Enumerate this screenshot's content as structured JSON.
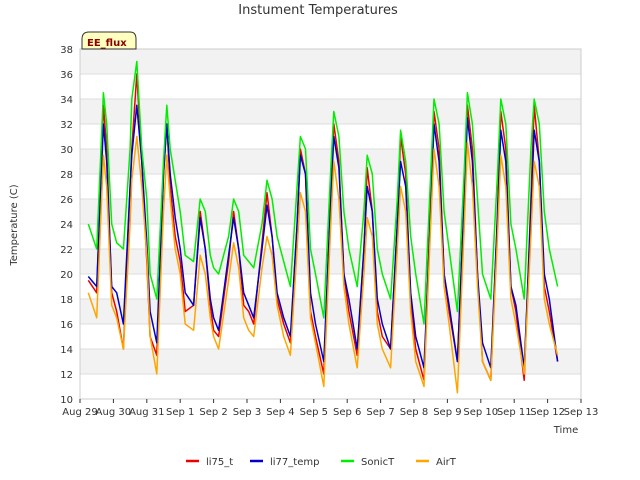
{
  "chart_data": {
    "type": "line",
    "title": "Instument Temperatures",
    "xlabel": "Time",
    "ylabel": "Temperature (C)",
    "badge": "EE_flux",
    "ylim": [
      10,
      38
    ],
    "yticks": [
      10,
      12,
      14,
      16,
      18,
      20,
      22,
      24,
      26,
      28,
      30,
      32,
      34,
      36,
      38
    ],
    "xlim": [
      0,
      15
    ],
    "xticks": [
      {
        "pos": 0,
        "label": "Aug 29"
      },
      {
        "pos": 1,
        "label": "Aug 30"
      },
      {
        "pos": 2,
        "label": "Aug 31"
      },
      {
        "pos": 3,
        "label": "Sep 1"
      },
      {
        "pos": 4,
        "label": "Sep 2"
      },
      {
        "pos": 5,
        "label": "Sep 3"
      },
      {
        "pos": 6,
        "label": "Sep 4"
      },
      {
        "pos": 7,
        "label": "Sep 5"
      },
      {
        "pos": 8,
        "label": "Sep 6"
      },
      {
        "pos": 9,
        "label": "Sep 7"
      },
      {
        "pos": 10,
        "label": "Sep 8"
      },
      {
        "pos": 11,
        "label": "Sep 9"
      },
      {
        "pos": 12,
        "label": "Sep 10"
      },
      {
        "pos": 13,
        "label": "Sep 11"
      },
      {
        "pos": 14,
        "label": "Sep 12"
      },
      {
        "pos": 15,
        "label": "Sep 13"
      }
    ],
    "grid": true,
    "legend_position": "bottom",
    "series": [
      {
        "name": "li75_t",
        "color": "#ee0000",
        "x": [
          0.25,
          0.5,
          0.7,
          0.8,
          0.95,
          1.1,
          1.3,
          1.5,
          1.55,
          1.7,
          1.85,
          2.0,
          2.1,
          2.3,
          2.5,
          2.6,
          2.7,
          2.85,
          3.0,
          3.15,
          3.4,
          3.6,
          3.75,
          3.9,
          4.0,
          4.15,
          4.45,
          4.6,
          4.75,
          4.9,
          5.05,
          5.2,
          5.45,
          5.6,
          5.75,
          5.9,
          6.1,
          6.3,
          6.5,
          6.6,
          6.75,
          6.9,
          7.05,
          7.3,
          7.5,
          7.6,
          7.75,
          7.9,
          8.05,
          8.3,
          8.5,
          8.6,
          8.75,
          8.9,
          9.05,
          9.3,
          9.5,
          9.6,
          9.75,
          9.9,
          10.05,
          10.3,
          10.5,
          10.6,
          10.75,
          10.9,
          11.05,
          11.3,
          11.5,
          11.6,
          11.75,
          11.9,
          12.05,
          12.3,
          12.5,
          12.6,
          12.75,
          12.9,
          13.05,
          13.3,
          13.5,
          13.6,
          13.75,
          13.9,
          14.05,
          14.3
        ],
        "y": [
          19.5,
          18.5,
          33.5,
          30,
          18.5,
          17,
          14,
          27,
          30,
          36,
          29,
          21,
          15,
          13.5,
          28,
          32,
          27,
          23,
          21,
          17,
          17.5,
          25,
          22,
          17.5,
          15.5,
          15,
          21,
          25,
          22,
          17.5,
          17,
          16,
          22.5,
          26.5,
          23,
          18,
          16,
          14.5,
          24,
          30,
          28,
          17,
          15,
          12,
          26,
          32,
          29,
          20,
          17,
          13.5,
          22,
          28.5,
          25,
          17,
          15,
          14,
          24,
          31,
          28,
          18,
          14,
          11.5,
          26,
          33,
          30,
          20,
          17,
          13,
          26,
          33.5,
          30,
          20,
          13,
          11.5,
          25,
          33,
          30,
          19,
          17,
          11.5,
          26,
          33.5,
          29,
          19,
          17,
          13
        ]
      },
      {
        "name": "li77_temp",
        "color": "#0000cc",
        "x": [
          0.25,
          0.5,
          0.7,
          0.8,
          0.95,
          1.1,
          1.3,
          1.5,
          1.55,
          1.7,
          1.85,
          2.0,
          2.1,
          2.3,
          2.5,
          2.6,
          2.7,
          2.85,
          3.0,
          3.15,
          3.4,
          3.6,
          3.75,
          3.9,
          4.0,
          4.15,
          4.45,
          4.6,
          4.75,
          4.9,
          5.05,
          5.2,
          5.45,
          5.6,
          5.75,
          5.9,
          6.1,
          6.3,
          6.5,
          6.6,
          6.75,
          6.9,
          7.05,
          7.3,
          7.5,
          7.6,
          7.75,
          7.9,
          8.05,
          8.3,
          8.5,
          8.6,
          8.75,
          8.9,
          9.05,
          9.3,
          9.5,
          9.6,
          9.75,
          9.9,
          10.05,
          10.3,
          10.5,
          10.6,
          10.75,
          10.9,
          11.05,
          11.3,
          11.5,
          11.6,
          11.75,
          11.9,
          12.05,
          12.3,
          12.5,
          12.6,
          12.75,
          12.9,
          13.05,
          13.3,
          13.5,
          13.6,
          13.75,
          13.9,
          14.05,
          14.3
        ],
        "y": [
          19.8,
          19,
          32,
          29,
          19,
          18.5,
          16,
          27,
          29.5,
          33.5,
          29,
          22.5,
          17,
          14.5,
          28,
          32,
          28,
          24.5,
          22,
          18.5,
          17.5,
          24.5,
          22,
          18,
          16.5,
          15.5,
          21.5,
          24.5,
          22,
          18.5,
          17.5,
          16.5,
          22,
          25.5,
          23,
          18.5,
          16.5,
          15,
          24,
          29.5,
          28,
          18.5,
          16,
          13,
          25.5,
          31,
          28.5,
          20,
          18,
          14,
          22,
          27,
          25,
          18,
          16,
          14,
          24,
          29,
          27,
          18.5,
          15,
          12.5,
          25,
          32,
          29,
          20,
          17.5,
          13,
          25.5,
          32.5,
          29,
          20,
          14.5,
          12.5,
          24.5,
          31.5,
          29,
          19,
          17.5,
          12.5,
          25,
          31.5,
          29,
          20,
          18,
          13
        ]
      },
      {
        "name": "SonicT",
        "color": "#00ee00",
        "x": [
          0.25,
          0.5,
          0.7,
          0.8,
          0.95,
          1.1,
          1.3,
          1.5,
          1.55,
          1.7,
          1.85,
          2.0,
          2.1,
          2.3,
          2.5,
          2.6,
          2.7,
          2.85,
          3.0,
          3.15,
          3.4,
          3.6,
          3.75,
          3.9,
          4.0,
          4.15,
          4.45,
          4.6,
          4.75,
          4.9,
          5.05,
          5.2,
          5.45,
          5.6,
          5.75,
          5.9,
          6.1,
          6.3,
          6.5,
          6.6,
          6.75,
          6.9,
          7.05,
          7.3,
          7.5,
          7.6,
          7.75,
          7.9,
          8.05,
          8.3,
          8.5,
          8.6,
          8.75,
          8.9,
          9.05,
          9.3,
          9.5,
          9.6,
          9.75,
          9.9,
          10.05,
          10.3,
          10.5,
          10.6,
          10.75,
          10.9,
          11.05,
          11.3,
          11.5,
          11.6,
          11.75,
          11.9,
          12.05,
          12.3,
          12.5,
          12.6,
          12.75,
          12.9,
          13.05,
          13.3,
          13.5,
          13.6,
          13.75,
          13.9,
          14.05,
          14.3
        ],
        "y": [
          24,
          22,
          34.5,
          32,
          24,
          22.5,
          22,
          30,
          34,
          37,
          30,
          26,
          20,
          18,
          29,
          33.5,
          30,
          27.5,
          25,
          21.5,
          21,
          26,
          25,
          21.5,
          20.5,
          20,
          23,
          26,
          25,
          21.5,
          21,
          20.5,
          24,
          27.5,
          26,
          23,
          21,
          19,
          27,
          31,
          30,
          22,
          20,
          16.5,
          28,
          33,
          31,
          25,
          22,
          19,
          25,
          29.5,
          28,
          22,
          20,
          18,
          26,
          31.5,
          29,
          23,
          20,
          16,
          28,
          34,
          32,
          25,
          22,
          17,
          28,
          34.5,
          32,
          26,
          20,
          18,
          28,
          34,
          32,
          24,
          22,
          18,
          30,
          34,
          32,
          25,
          22,
          19
        ]
      },
      {
        "name": "AirT",
        "color": "#ffa500",
        "x": [
          0.25,
          0.5,
          0.7,
          0.8,
          0.95,
          1.1,
          1.3,
          1.5,
          1.55,
          1.7,
          1.85,
          2.0,
          2.1,
          2.3,
          2.5,
          2.6,
          2.7,
          2.85,
          3.0,
          3.15,
          3.4,
          3.6,
          3.75,
          3.9,
          4.0,
          4.15,
          4.45,
          4.6,
          4.75,
          4.9,
          5.05,
          5.2,
          5.45,
          5.6,
          5.75,
          5.9,
          6.1,
          6.3,
          6.5,
          6.6,
          6.75,
          6.9,
          7.05,
          7.3,
          7.5,
          7.6,
          7.75,
          7.9,
          8.05,
          8.3,
          8.5,
          8.6,
          8.75,
          8.9,
          9.05,
          9.3,
          9.5,
          9.6,
          9.75,
          9.9,
          10.05,
          10.3,
          10.5,
          10.6,
          10.75,
          10.9,
          11.05,
          11.3,
          11.5,
          11.6,
          11.75,
          11.9,
          12.05,
          12.3,
          12.5,
          12.6,
          12.75,
          12.9,
          13.05,
          13.3,
          13.5,
          13.6,
          13.75,
          13.9,
          14.05,
          14.3
        ],
        "y": [
          18.5,
          16.5,
          29.5,
          27,
          17.5,
          16.5,
          14,
          24,
          27.5,
          31,
          27,
          21.5,
          15,
          12,
          25,
          29.5,
          26,
          22,
          20,
          16,
          15.5,
          21.5,
          20,
          16.5,
          15,
          14,
          19.5,
          22.5,
          20.5,
          16.5,
          15.5,
          15,
          20.5,
          23,
          21.5,
          17.5,
          15,
          13.5,
          22,
          26.5,
          25,
          16.5,
          14.5,
          11,
          23.5,
          29,
          26,
          19,
          16,
          12.5,
          20,
          24.5,
          23,
          16,
          14,
          12.5,
          22,
          27,
          25,
          17,
          13,
          11,
          24,
          30,
          27,
          19,
          16,
          10.5,
          23.5,
          30.5,
          27,
          19,
          13,
          11.5,
          23,
          29.5,
          27,
          18,
          16,
          12,
          23,
          29,
          27,
          18,
          16,
          13.5
        ]
      }
    ]
  }
}
